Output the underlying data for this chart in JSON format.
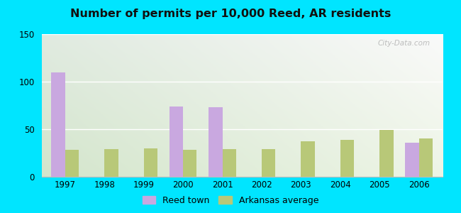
{
  "title": "Number of permits per 10,000 Reed, AR residents",
  "years": [
    1997,
    1998,
    1999,
    2000,
    2001,
    2002,
    2003,
    2004,
    2005,
    2006
  ],
  "reed_town": [
    110,
    0,
    0,
    74,
    73,
    0,
    0,
    0,
    0,
    36
  ],
  "arkansas_avg": [
    28,
    29,
    30,
    28,
    29,
    29,
    37,
    39,
    49,
    40
  ],
  "reed_color": "#c9a8e0",
  "arkansas_color": "#b8c878",
  "ylim": [
    0,
    150
  ],
  "yticks": [
    0,
    50,
    100,
    150
  ],
  "bar_width": 0.35,
  "outer_bg": "#00e5ff",
  "legend_reed": "Reed town",
  "legend_ark": "Arkansas average",
  "watermark": "City-Data.com",
  "bg_top_left": "#c8ede0",
  "bg_top_right": "#e8f8f8",
  "bg_bottom_left": "#d8f0d0",
  "bg_bottom_right": "#e8f8e8"
}
